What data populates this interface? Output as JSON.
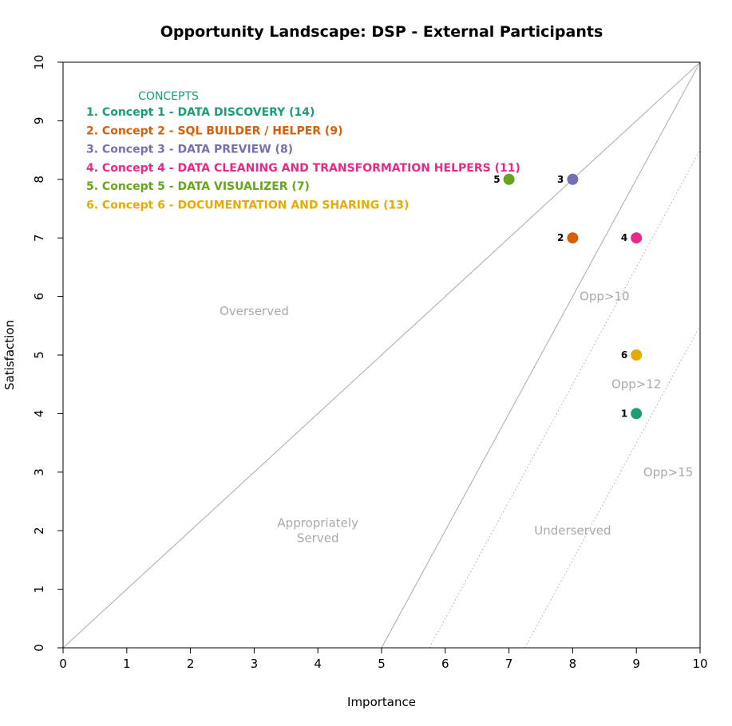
{
  "chart_data": {
    "type": "scatter",
    "title": "Opportunity Landscape: DSP - External Participants",
    "xlabel": "Importance",
    "ylabel": "Satisfaction",
    "xlim": [
      0,
      10
    ],
    "ylim": [
      0,
      10
    ],
    "xticks": [
      0,
      1,
      2,
      3,
      4,
      5,
      6,
      7,
      8,
      9,
      10
    ],
    "yticks": [
      0,
      1,
      2,
      3,
      4,
      5,
      6,
      7,
      8,
      9,
      10
    ],
    "grid": false,
    "legend": {
      "placement": "top-left",
      "title": "CONCEPTS",
      "title_color": "#1b9e77",
      "entries": [
        {
          "label": "1. Concept 1 - DATA DISCOVERY (14)",
          "color": "#1b9e77"
        },
        {
          "label": "2. Concept 2 - SQL BUILDER / HELPER (9)",
          "color": "#d95f02"
        },
        {
          "label": "3. Concept 3 - DATA PREVIEW (8)",
          "color": "#7570b3"
        },
        {
          "label": "4. Concept 4 - DATA CLEANING AND TRANSFORMATION HELPERS (11)",
          "color": "#e7298a"
        },
        {
          "label": "5. Concept 5 - DATA VISUALIZER (7)",
          "color": "#66a61e"
        },
        {
          "label": "6. Concept 6 - DOCUMENTATION AND SHARING (13)",
          "color": "#e6ab02"
        }
      ]
    },
    "points": [
      {
        "label": "1",
        "x": 9,
        "y": 4,
        "color": "#1b9e77"
      },
      {
        "label": "2",
        "x": 8,
        "y": 7,
        "color": "#d95f02"
      },
      {
        "label": "3",
        "x": 8,
        "y": 8,
        "color": "#7570b3"
      },
      {
        "label": "4",
        "x": 9,
        "y": 7,
        "color": "#e7298a"
      },
      {
        "label": "5",
        "x": 7,
        "y": 8,
        "color": "#66a61e"
      },
      {
        "label": "6",
        "x": 9,
        "y": 5,
        "color": "#e6ab02"
      }
    ],
    "reference_lines": [
      {
        "from": [
          0,
          0
        ],
        "to": [
          10,
          10
        ],
        "style": "solid"
      },
      {
        "from": [
          5,
          0
        ],
        "to": [
          10,
          10
        ],
        "style": "solid"
      },
      {
        "from": [
          5.75,
          0
        ],
        "to": [
          10,
          8.5
        ],
        "style": "dotted"
      },
      {
        "from": [
          7.25,
          0
        ],
        "to": [
          10,
          5.5
        ],
        "style": "dotted"
      }
    ],
    "region_labels": [
      {
        "lines": [
          "Overserved"
        ],
        "x": 3,
        "y": 5.75
      },
      {
        "lines": [
          "Appropriately",
          "Served"
        ],
        "x": 4,
        "y": 2.0
      },
      {
        "lines": [
          "Underserved"
        ],
        "x": 8,
        "y": 2.0
      },
      {
        "lines": [
          "Opp>10"
        ],
        "x": 8.5,
        "y": 6.0
      },
      {
        "lines": [
          "Opp>12"
        ],
        "x": 9,
        "y": 4.5
      },
      {
        "lines": [
          "Opp>15"
        ],
        "x": 9.5,
        "y": 3.0
      }
    ],
    "line_color": "#a9a9a9"
  }
}
